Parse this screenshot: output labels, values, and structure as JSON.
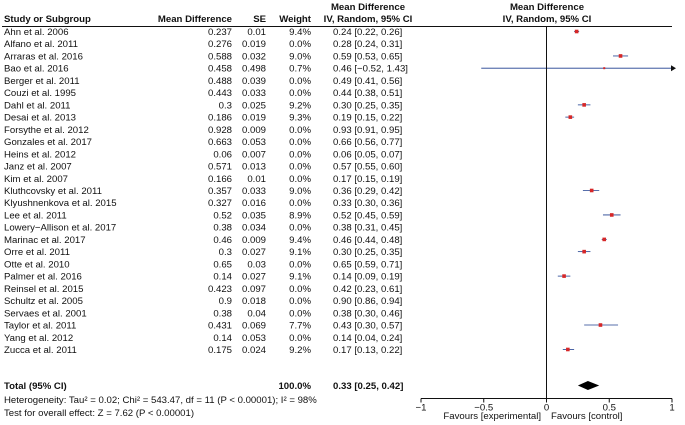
{
  "chart_data": {
    "type": "forest",
    "headers": {
      "study": "Study or Subgroup",
      "md": "Mean Difference",
      "se": "SE",
      "weight": "Weight",
      "ci_title": "Mean Difference",
      "ci_subtitle": "IV, Random, 95% CI",
      "plot_title": "Mean Difference",
      "plot_subtitle": "IV, Random, 95% CI"
    },
    "studies": [
      {
        "name": "Ahn et al. 2006",
        "md": "0.237",
        "se": "0.01",
        "weight": "9.4%",
        "ci": "0.24 [0.22, 0.26]",
        "est": 0.24,
        "lo": 0.22,
        "hi": 0.26,
        "plotted": true
      },
      {
        "name": "Alfano et al. 2011",
        "md": "0.276",
        "se": "0.019",
        "weight": "0.0%",
        "ci": "0.28 [0.24, 0.31]",
        "est": 0.28,
        "lo": 0.24,
        "hi": 0.31,
        "plotted": false
      },
      {
        "name": "Arraras et al. 2016",
        "md": "0.588",
        "se": "0.032",
        "weight": "9.0%",
        "ci": "0.59 [0.53, 0.65]",
        "est": 0.59,
        "lo": 0.53,
        "hi": 0.65,
        "plotted": true
      },
      {
        "name": "Bao et al. 2016",
        "md": "0.458",
        "se": "0.498",
        "weight": "0.7%",
        "ci": "0.46 [−0.52, 1.43]",
        "est": 0.46,
        "lo": -0.52,
        "hi": 1.43,
        "plotted": true
      },
      {
        "name": "Berger et al. 2011",
        "md": "0.488",
        "se": "0.039",
        "weight": "0.0%",
        "ci": "0.49 [0.41, 0.56]",
        "est": 0.49,
        "lo": 0.41,
        "hi": 0.56,
        "plotted": false
      },
      {
        "name": "Couzi et al. 1995",
        "md": "0.443",
        "se": "0.033",
        "weight": "0.0%",
        "ci": "0.44 [0.38, 0.51]",
        "est": 0.44,
        "lo": 0.38,
        "hi": 0.51,
        "plotted": false
      },
      {
        "name": "Dahl et al. 2011",
        "md": "0.3",
        "se": "0.025",
        "weight": "9.2%",
        "ci": "0.30 [0.25, 0.35]",
        "est": 0.3,
        "lo": 0.25,
        "hi": 0.35,
        "plotted": true
      },
      {
        "name": "Desai et al. 2013",
        "md": "0.186",
        "se": "0.019",
        "weight": "9.3%",
        "ci": "0.19 [0.15, 0.22]",
        "est": 0.19,
        "lo": 0.15,
        "hi": 0.22,
        "plotted": true
      },
      {
        "name": "Forsythe et al. 2012",
        "md": "0.928",
        "se": "0.009",
        "weight": "0.0%",
        "ci": "0.93 [0.91, 0.95]",
        "est": 0.93,
        "lo": 0.91,
        "hi": 0.95,
        "plotted": false
      },
      {
        "name": "Gonzales et al. 2017",
        "md": "0.663",
        "se": "0.053",
        "weight": "0.0%",
        "ci": "0.66 [0.56, 0.77]",
        "est": 0.66,
        "lo": 0.56,
        "hi": 0.77,
        "plotted": false
      },
      {
        "name": "Heins et al. 2012",
        "md": "0.06",
        "se": "0.007",
        "weight": "0.0%",
        "ci": "0.06 [0.05, 0.07]",
        "est": 0.06,
        "lo": 0.05,
        "hi": 0.07,
        "plotted": false
      },
      {
        "name": "Janz et al. 2007",
        "md": "0.571",
        "se": "0.013",
        "weight": "0.0%",
        "ci": "0.57 [0.55, 0.60]",
        "est": 0.57,
        "lo": 0.55,
        "hi": 0.6,
        "plotted": false
      },
      {
        "name": "Kim et al. 2007",
        "md": "0.166",
        "se": "0.01",
        "weight": "0.0%",
        "ci": "0.17 [0.15, 0.19]",
        "est": 0.17,
        "lo": 0.15,
        "hi": 0.19,
        "plotted": false
      },
      {
        "name": "Kluthcovsky et al. 2011",
        "md": "0.357",
        "se": "0.033",
        "weight": "9.0%",
        "ci": "0.36 [0.29, 0.42]",
        "est": 0.36,
        "lo": 0.29,
        "hi": 0.42,
        "plotted": true
      },
      {
        "name": "Klyushnenkova et al. 2015",
        "md": "0.327",
        "se": "0.016",
        "weight": "0.0%",
        "ci": "0.33 [0.30, 0.36]",
        "est": 0.33,
        "lo": 0.3,
        "hi": 0.36,
        "plotted": false
      },
      {
        "name": "Lee et al. 2011",
        "md": "0.52",
        "se": "0.035",
        "weight": "8.9%",
        "ci": "0.52 [0.45, 0.59]",
        "est": 0.52,
        "lo": 0.45,
        "hi": 0.59,
        "plotted": true
      },
      {
        "name": "Lowery−Allison et al. 2017",
        "md": "0.38",
        "se": "0.034",
        "weight": "0.0%",
        "ci": "0.38 [0.31, 0.45]",
        "est": 0.38,
        "lo": 0.31,
        "hi": 0.45,
        "plotted": false
      },
      {
        "name": "Marinac et al. 2017",
        "md": "0.46",
        "se": "0.009",
        "weight": "9.4%",
        "ci": "0.46 [0.44, 0.48]",
        "est": 0.46,
        "lo": 0.44,
        "hi": 0.48,
        "plotted": true
      },
      {
        "name": "Orre et al. 2011",
        "md": "0.3",
        "se": "0.027",
        "weight": "9.1%",
        "ci": "0.30 [0.25, 0.35]",
        "est": 0.3,
        "lo": 0.25,
        "hi": 0.35,
        "plotted": true
      },
      {
        "name": "Otte et al. 2010",
        "md": "0.65",
        "se": "0.03",
        "weight": "0.0%",
        "ci": "0.65 [0.59, 0.71]",
        "est": 0.65,
        "lo": 0.59,
        "hi": 0.71,
        "plotted": false
      },
      {
        "name": "Palmer et al. 2016",
        "md": "0.14",
        "se": "0.027",
        "weight": "9.1%",
        "ci": "0.14 [0.09, 0.19]",
        "est": 0.14,
        "lo": 0.09,
        "hi": 0.19,
        "plotted": true
      },
      {
        "name": "Reinsel et al. 2015",
        "md": "0.423",
        "se": "0.097",
        "weight": "0.0%",
        "ci": "0.42 [0.23, 0.61]",
        "est": 0.42,
        "lo": 0.23,
        "hi": 0.61,
        "plotted": false
      },
      {
        "name": "Schultz et al. 2005",
        "md": "0.9",
        "se": "0.018",
        "weight": "0.0%",
        "ci": "0.90 [0.86, 0.94]",
        "est": 0.9,
        "lo": 0.86,
        "hi": 0.94,
        "plotted": false
      },
      {
        "name": "Servaes et al. 2001",
        "md": "0.38",
        "se": "0.04",
        "weight": "0.0%",
        "ci": "0.38 [0.30, 0.46]",
        "est": 0.38,
        "lo": 0.3,
        "hi": 0.46,
        "plotted": false
      },
      {
        "name": "Taylor et al. 2011",
        "md": "0.431",
        "se": "0.069",
        "weight": "7.7%",
        "ci": "0.43 [0.30, 0.57]",
        "est": 0.43,
        "lo": 0.3,
        "hi": 0.57,
        "plotted": true
      },
      {
        "name": "Yang et al. 2012",
        "md": "0.14",
        "se": "0.053",
        "weight": "0.0%",
        "ci": "0.14 [0.04, 0.24]",
        "est": 0.14,
        "lo": 0.04,
        "hi": 0.24,
        "plotted": false
      },
      {
        "name": "Zucca et al. 2011",
        "md": "0.175",
        "se": "0.024",
        "weight": "9.2%",
        "ci": "0.17 [0.13, 0.22]",
        "est": 0.17,
        "lo": 0.13,
        "hi": 0.22,
        "plotted": true
      }
    ],
    "total": {
      "name": "Total (95% CI)",
      "weight": "100.0%",
      "ci": "0.33 [0.25, 0.42]",
      "est": 0.33,
      "lo": 0.25,
      "hi": 0.42
    },
    "heterogeneity": "Heterogeneity: Tau² = 0.02; Chi² = 543.47, df = 11 (P < 0.00001); I² = 98%",
    "overall_effect": "Test for overall effect: Z = 7.62 (P < 0.00001)",
    "xlim": [
      -1,
      1
    ],
    "ticks": [
      {
        "value": -1,
        "label": "−1"
      },
      {
        "value": -0.5,
        "label": "−0.5"
      },
      {
        "value": 0,
        "label": "0"
      },
      {
        "value": 0.5,
        "label": "0.5"
      },
      {
        "value": 1,
        "label": "1"
      }
    ],
    "favours_left": "Favours [experimental]",
    "favours_right": "Favours [control]",
    "colors": {
      "point": "#d62728",
      "ci_line": "#1f3f8f",
      "diamond": "#000000",
      "text": "#111111"
    }
  }
}
